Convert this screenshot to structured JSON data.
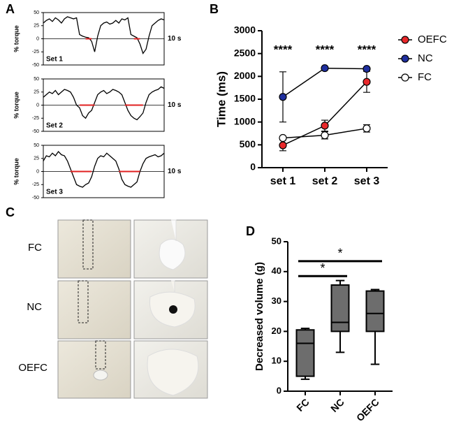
{
  "figure_labels": [
    "A",
    "B",
    "C",
    "D"
  ],
  "photo_rows": [
    "FC",
    "NC",
    "OEFC"
  ],
  "chart_data": [
    {
      "type": "trace",
      "ylabel": "% torque",
      "annotation": "Set 1",
      "scale_label": "10 s",
      "x": [
        0,
        1,
        2,
        3,
        4,
        5,
        6,
        7,
        8,
        9,
        10,
        11,
        12,
        13,
        14,
        15,
        16,
        17,
        18,
        19,
        20,
        21,
        22,
        23,
        24,
        25,
        26,
        27,
        28,
        29,
        30,
        31,
        32,
        33,
        34,
        35,
        36,
        37,
        38,
        39,
        40
      ],
      "xlim": [
        0,
        40
      ],
      "ylim": [
        -50,
        50
      ],
      "yticks": [
        -50,
        -25,
        0,
        25,
        50
      ],
      "series": [
        {
          "color": "#000000",
          "values": [
            30,
            35,
            38,
            33,
            40,
            36,
            30,
            38,
            42,
            40,
            38,
            40,
            8,
            5,
            3,
            2,
            -5,
            -25,
            5,
            25,
            30,
            32,
            28,
            30,
            35,
            30,
            38,
            36,
            40,
            8,
            5,
            2,
            -10,
            -28,
            -20,
            5,
            25,
            30,
            35,
            38,
            36
          ]
        },
        {
          "color": "#e02020",
          "values": [
            null,
            null,
            null,
            null,
            null,
            null,
            null,
            null,
            null,
            null,
            null,
            null,
            null,
            null,
            0,
            0,
            0,
            null,
            null,
            null,
            null,
            null,
            null,
            null,
            null,
            null,
            null,
            null,
            null,
            null,
            0,
            0,
            0,
            null,
            null,
            null,
            null,
            null,
            null,
            null,
            null
          ]
        }
      ]
    },
    {
      "type": "trace",
      "ylabel": "% torque",
      "annotation": "Set 2",
      "scale_label": "10 s",
      "x": [
        0,
        1,
        2,
        3,
        4,
        5,
        6,
        7,
        8,
        9,
        10,
        11,
        12,
        13,
        14,
        15,
        16,
        17,
        18,
        19,
        20,
        21,
        22,
        23,
        24,
        25,
        26,
        27,
        28,
        29,
        30,
        31,
        32,
        33,
        34,
        35,
        36,
        37,
        38,
        39,
        40
      ],
      "xlim": [
        0,
        40
      ],
      "ylim": [
        -50,
        50
      ],
      "yticks": [
        -50,
        -25,
        0,
        25,
        50
      ],
      "series": [
        {
          "color": "#000000",
          "values": [
            15,
            20,
            25,
            22,
            28,
            20,
            25,
            30,
            28,
            25,
            15,
            0,
            -5,
            -20,
            -25,
            -15,
            -10,
            5,
            20,
            25,
            28,
            22,
            25,
            30,
            28,
            25,
            20,
            5,
            -10,
            -20,
            -25,
            -28,
            -22,
            -15,
            5,
            20,
            25,
            28,
            30,
            35,
            32
          ]
        },
        {
          "color": "#e02020",
          "values": [
            null,
            null,
            null,
            null,
            null,
            null,
            null,
            null,
            null,
            null,
            null,
            null,
            0,
            0,
            0,
            0,
            0,
            0,
            null,
            null,
            null,
            null,
            null,
            null,
            null,
            null,
            null,
            0,
            0,
            0,
            0,
            0,
            0,
            0,
            null,
            null,
            null,
            null,
            null,
            null,
            null
          ]
        }
      ]
    },
    {
      "type": "trace",
      "ylabel": "% torque",
      "annotation": "Set 3",
      "scale_label": "10 s",
      "x": [
        0,
        1,
        2,
        3,
        4,
        5,
        6,
        7,
        8,
        9,
        10,
        11,
        12,
        13,
        14,
        15,
        16,
        17,
        18,
        19,
        20,
        21,
        22,
        23,
        24,
        25,
        26,
        27,
        28,
        29,
        30,
        31,
        32,
        33,
        34,
        35,
        36,
        37,
        38,
        39,
        40
      ],
      "xlim": [
        0,
        40
      ],
      "ylim": [
        -50,
        50
      ],
      "yticks": [
        -50,
        -25,
        0,
        25,
        50
      ],
      "series": [
        {
          "color": "#000000",
          "values": [
            20,
            30,
            28,
            35,
            30,
            38,
            32,
            30,
            20,
            5,
            -10,
            -25,
            -28,
            -30,
            -25,
            -22,
            -10,
            10,
            25,
            30,
            28,
            35,
            30,
            25,
            20,
            5,
            -15,
            -25,
            -28,
            -30,
            -25,
            -20,
            0,
            15,
            25,
            28,
            30,
            32,
            28,
            30,
            35
          ]
        },
        {
          "color": "#e02020",
          "values": [
            null,
            null,
            null,
            null,
            null,
            null,
            null,
            null,
            null,
            0,
            0,
            0,
            0,
            0,
            0,
            0,
            0,
            null,
            null,
            null,
            null,
            null,
            null,
            null,
            null,
            0,
            0,
            0,
            0,
            0,
            0,
            0,
            0,
            null,
            null,
            null,
            null,
            null,
            null,
            null,
            null
          ]
        }
      ]
    },
    {
      "type": "line_error",
      "ylabel": "Time (ms)",
      "categories": [
        "set 1",
        "set 2",
        "set 3"
      ],
      "ylim": [
        0,
        3000
      ],
      "yticks": [
        0,
        500,
        1000,
        1500,
        2000,
        2500,
        3000
      ],
      "legend": "right",
      "annotations": [
        "****",
        "****",
        "****"
      ],
      "series": [
        {
          "name": "OEFC",
          "color": "#e8282b",
          "values": [
            490,
            920,
            1880
          ],
          "errors": [
            120,
            120,
            230
          ]
        },
        {
          "name": "NC",
          "color": "#1f2f9e",
          "values": [
            1550,
            2180,
            2165
          ],
          "errors": [
            550,
            20,
            20
          ]
        },
        {
          "name": "FC",
          "color": "#ffffff",
          "values": [
            650,
            710,
            860
          ],
          "errors": [
            40,
            80,
            80
          ]
        }
      ]
    },
    {
      "type": "box",
      "ylabel": "Decreased volume (g)",
      "categories": [
        "FC",
        "NC",
        "OEFC"
      ],
      "color": "#6d6d6d",
      "ylim": [
        0,
        50
      ],
      "yticks": [
        0,
        10,
        20,
        30,
        40,
        50
      ],
      "boxes": [
        {
          "min": 4,
          "q1": 5,
          "median": 16,
          "q3": 20.5,
          "max": 21
        },
        {
          "min": 13,
          "q1": 20,
          "median": 23,
          "q3": 35.5,
          "max": 37
        },
        {
          "min": 9,
          "q1": 20,
          "median": 26,
          "q3": 33.5,
          "max": 34
        }
      ],
      "significance": [
        {
          "label": "*",
          "from": 0,
          "to": 1,
          "y": 38.5
        },
        {
          "label": "*",
          "from": 0,
          "to": 2,
          "y": 43.5
        }
      ]
    }
  ]
}
